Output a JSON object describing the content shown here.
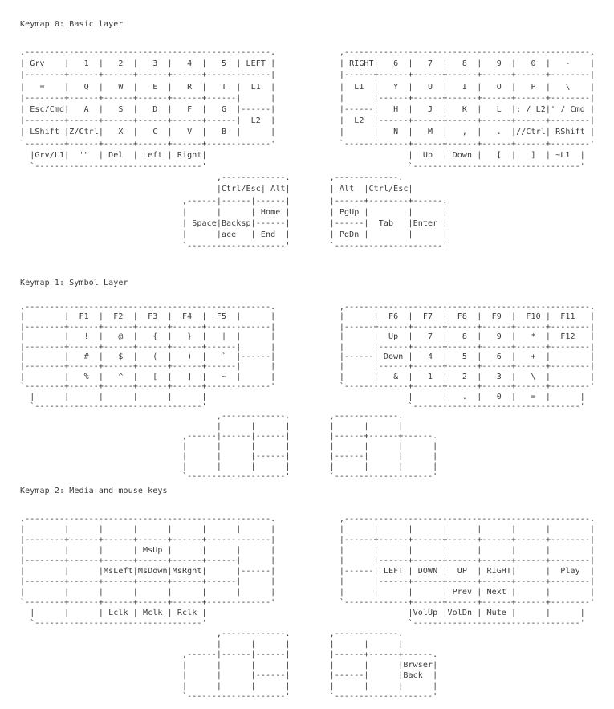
{
  "page": {
    "background": "#ffffff",
    "text_color": "#3a3a3a"
  },
  "keymaps": [
    {
      "title": "Keymap 0: Basic layer",
      "art": {
        "left_indent": [
          0,
          0,
          0,
          0,
          0,
          0,
          0,
          0,
          0,
          2,
          2,
          40,
          40,
          33,
          33,
          33,
          33,
          33
        ],
        "right_col": [
          65,
          65,
          65,
          65,
          65,
          65,
          65,
          65,
          65,
          79,
          79,
          63,
          63,
          63,
          63,
          63,
          63,
          63
        ],
        "left": [
          ",--------------------------------------------------.",
          "| Grv    |   1  |   2  |   3  |   4  |   5  | LEFT |",
          "|--------+------+------+------+------+-------------|",
          "|   =    |   Q  |   W  |   E  |   R  |   T  |  L1  |",
          "|--------+------+------+------+------+------|      |",
          "| Esc/Cmd|   A  |   S  |   D  |   F  |   G  |------|",
          "|--------+------+------+------+------+------|  L2  |",
          "| LShift |Z/Ctrl|   X  |   C  |   V  |   B  |      |",
          "`--------+------+------+------+------+-------------'",
          "|Grv/L1|  '\"  | Del  | Left | Right|",
          "`----------------------------------'",
          ",-------------.",
          "|Ctrl/Esc| Alt|",
          ",------|------|------|",
          "|      |      | Home |",
          "| Space|Backsp|------|",
          "|      |ace   | End  |",
          "`--------------------'"
        ],
        "right": [
          ",--------------------------------------------------.",
          "| RIGHT|   6  |   7  |   8  |   9  |   0  |   -    |",
          "|------+------+------+------+------+------+--------|",
          "|  L1  |   Y  |   U  |   I  |   O  |   P  |   \\    |",
          "|      |------+------+------+------+------+--------|",
          "|------|   H  |   J  |   K  |   L  |; / L2|' / Cmd |",
          "|  L2  |------+------+------+------+------+--------|",
          "|      |   N  |   M  |   ,  |   .  |//Ctrl| RShift |",
          "`-------------+------+------+------+------+--------'",
          "|  Up  | Down |   [  |   ]  | ~L1  |",
          "`----------------------------------'",
          ",-------------.",
          "| Alt  |Ctrl/Esc|",
          "|------+--------+------.",
          "| PgUp |        |      |",
          "|------|  Tab   |Enter |",
          "| PgDn |        |      |",
          "`----------------------'"
        ]
      }
    },
    {
      "title": "Keymap 1: Symbol Layer",
      "art": {
        "left_indent": [
          0,
          0,
          0,
          0,
          0,
          0,
          0,
          0,
          0,
          2,
          2,
          40,
          40,
          33,
          33,
          33,
          33,
          33
        ],
        "right_col": [
          65,
          65,
          65,
          65,
          65,
          65,
          65,
          65,
          65,
          79,
          79,
          63,
          63,
          63,
          63,
          63,
          63,
          63
        ],
        "left": [
          ",--------------------------------------------------.",
          "|        |  F1  |  F2  |  F3  |  F4  |  F5  |      |",
          "|--------+------+------+------+------+-------------|",
          "|        |   !  |   @  |   {  |   }  |   |  |      |",
          "|--------+------+------+------+------+------|      |",
          "|        |   #  |   $  |   (  |   )  |   `  |------|",
          "|--------+------+------+------+------+------|      |",
          "|        |   %  |   ^  |   [  |   ]  |   ~  |      |",
          "`--------+------+------+------+------+-------------'",
          "|      |      |      |      |      |",
          "`----------------------------------'",
          ",-------------.",
          "|      |      |",
          ",------|------|------|",
          "|      |      |      |",
          "|      |      |------|",
          "|      |      |      |",
          "`--------------------'"
        ],
        "right": [
          ",--------------------------------------------------.",
          "|      |  F6  |  F7  |  F8  |  F9  |  F10 |  F11   |",
          "|------+------+------+------+------+------+--------|",
          "|      |  Up  |   7  |   8  |   9  |   *  |  F12   |",
          "|      |------+------+------+------+------+--------|",
          "|------| Down |   4  |   5  |   6  |   +  |        |",
          "|      |------+------+------+------+------+--------|",
          "|      |   &  |   1  |   2  |   3  |   \\  |        |",
          "`-------------+------+------+------+------+--------'",
          "|      |   .  |   0  |   =  |      |",
          "`----------------------------------'",
          ",-------------.",
          "|      |      |",
          "|------+------+------.",
          "|      |      |      |",
          "|------|      |      |",
          "|      |      |      |",
          "`--------------------'"
        ]
      }
    },
    {
      "title": "Keymap 2: Media and mouse keys",
      "art": {
        "left_indent": [
          0,
          0,
          0,
          0,
          0,
          0,
          0,
          0,
          0,
          2,
          2,
          40,
          40,
          33,
          33,
          33,
          33,
          33
        ],
        "right_col": [
          65,
          65,
          65,
          65,
          65,
          65,
          65,
          65,
          65,
          79,
          79,
          63,
          63,
          63,
          63,
          63,
          63,
          63
        ],
        "left": [
          ",--------------------------------------------------.",
          "|        |      |      |      |      |      |      |",
          "|--------+------+------+------+------+-------------|",
          "|        |      |      | MsUp |      |      |      |",
          "|--------+------+------+------+------+------|      |",
          "|        |      |MsLeft|MsDown|MsRght|      |------|",
          "|--------+------+------+------+------+------|      |",
          "|        |      |      |      |      |      |      |",
          "`--------+------+------+------+------+-------------'",
          "|      |      | Lclk | Mclk | Rclk |",
          "`----------------------------------'",
          ",-------------.",
          "|      |      |",
          ",------|------|------|",
          "|      |      |      |",
          "|      |      |------|",
          "|      |      |      |",
          "`--------------------'"
        ],
        "right": [
          ",--------------------------------------------------.",
          "|      |      |      |      |      |      |        |",
          "|------+------+------+------+------+------+--------|",
          "|      |      |      |      |      |      |        |",
          "|      |------+------+------+------+------+--------|",
          "|------| LEFT | DOWN |  UP  | RIGHT|      |  Play  |",
          "|      |------+------+------+------+------+--------|",
          "|      |      |      | Prev | Next |      |        |",
          "`-------------+------+------+------+------+--------'",
          "|VolUp |VolDn | Mute |      |      |",
          "`----------------------------------'",
          ",-------------.",
          "|      |      |",
          "|------+------+------.",
          "|      |      |Brwser|",
          "|------|      |Back  |",
          "|      |      |      |",
          "`--------------------'"
        ]
      }
    }
  ]
}
